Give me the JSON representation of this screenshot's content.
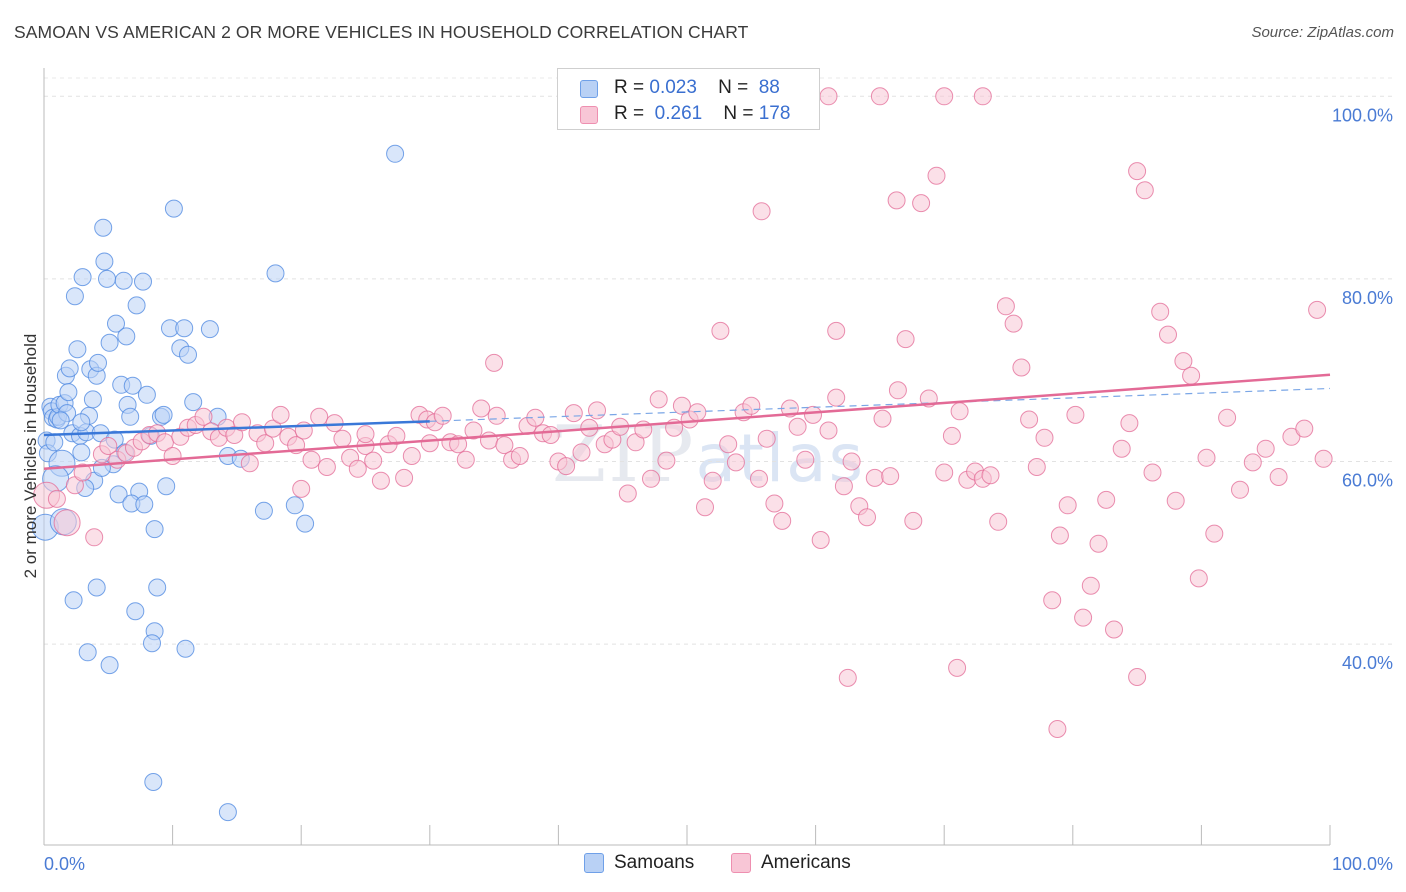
{
  "title": "SAMOAN VS AMERICAN 2 OR MORE VEHICLES IN HOUSEHOLD CORRELATION CHART",
  "source": "Source: ZipAtlas.com",
  "watermark": {
    "zip": "ZIP",
    "atlas": "atlas"
  },
  "legend": {
    "r_label": "R =",
    "n_label": "N =",
    "rows": [
      {
        "r": "0.023",
        "n": "88",
        "color": "#6fa0e8",
        "fill": "#b9d1f5"
      },
      {
        "r": "0.261",
        "n": "178",
        "color": "#ee8fb0",
        "fill": "#f8c6d6"
      }
    ]
  },
  "bottom_legend": [
    {
      "label": "Samoans",
      "fill": "#b9d1f5",
      "border": "#6fa0e8"
    },
    {
      "label": "Americans",
      "fill": "#f8c6d6",
      "border": "#ee8fb0"
    }
  ],
  "chart_data": {
    "type": "scatter",
    "title": "SAMOAN VS AMERICAN 2 OR MORE VEHICLES IN HOUSEHOLD CORRELATION CHART",
    "xlabel": "",
    "ylabel": "2 or more Vehicles in Household",
    "xlim": [
      0,
      100
    ],
    "ylim": [
      18,
      102
    ],
    "x_tick_labels": [
      "0.0%",
      "100.0%"
    ],
    "y_tick_labels": [
      "40.0%",
      "60.0%",
      "80.0%",
      "100.0%"
    ],
    "y_ticks": [
      40,
      60,
      80,
      100
    ],
    "grid": true,
    "legend_position": "top-center",
    "series": [
      {
        "name": "Samoans",
        "color": "#4a86e0",
        "fill": "#b9d1f5",
        "r": 0.023,
        "n": 88,
        "trend": {
          "x": [
            0,
            30.0
          ],
          "y": [
            62.9,
            64.4
          ],
          "dashed_to": [
            100,
            68.0
          ]
        },
        "points": [
          [
            0.2,
            62.3
          ],
          [
            0.3,
            60.9
          ],
          [
            0.5,
            66.0
          ],
          [
            0.6,
            65.5
          ],
          [
            0.7,
            64.8
          ],
          [
            0.8,
            62.1
          ],
          [
            1.0,
            64.6
          ],
          [
            1.1,
            64.9
          ],
          [
            1.2,
            66.2
          ],
          [
            1.4,
            59.8
          ],
          [
            1.6,
            66.4
          ],
          [
            1.7,
            69.4
          ],
          [
            1.8,
            65.3
          ],
          [
            1.9,
            67.6
          ],
          [
            2.0,
            70.2
          ],
          [
            2.2,
            63.1
          ],
          [
            2.4,
            78.1
          ],
          [
            2.6,
            72.3
          ],
          [
            2.8,
            62.8
          ],
          [
            2.9,
            61.0
          ],
          [
            3.0,
            80.2
          ],
          [
            3.3,
            63.2
          ],
          [
            3.5,
            65.0
          ],
          [
            3.6,
            70.1
          ],
          [
            3.8,
            66.8
          ],
          [
            3.9,
            57.9
          ],
          [
            4.1,
            69.4
          ],
          [
            4.2,
            70.8
          ],
          [
            4.4,
            63.1
          ],
          [
            4.6,
            85.6
          ],
          [
            4.7,
            81.9
          ],
          [
            4.9,
            80.0
          ],
          [
            5.1,
            73.0
          ],
          [
            5.4,
            59.7
          ],
          [
            5.6,
            75.1
          ],
          [
            5.8,
            56.4
          ],
          [
            6.0,
            68.4
          ],
          [
            6.2,
            79.8
          ],
          [
            6.4,
            73.7
          ],
          [
            6.5,
            66.2
          ],
          [
            6.7,
            64.9
          ],
          [
            6.9,
            68.3
          ],
          [
            7.2,
            77.1
          ],
          [
            7.4,
            56.7
          ],
          [
            7.7,
            79.7
          ],
          [
            8.0,
            67.3
          ],
          [
            8.3,
            62.8
          ],
          [
            8.6,
            52.6
          ],
          [
            9.1,
            64.9
          ],
          [
            9.5,
            57.3
          ],
          [
            9.8,
            74.6
          ],
          [
            10.1,
            87.7
          ],
          [
            10.6,
            72.4
          ],
          [
            10.9,
            74.6
          ],
          [
            11.2,
            71.7
          ],
          [
            11.6,
            66.5
          ],
          [
            12.9,
            74.5
          ],
          [
            14.3,
            60.6
          ],
          [
            15.3,
            60.3
          ],
          [
            18.0,
            80.6
          ],
          [
            19.5,
            55.2
          ],
          [
            20.3,
            53.2
          ],
          [
            27.3,
            93.7
          ],
          [
            17.1,
            54.6
          ],
          [
            13.5,
            64.9
          ],
          [
            9.3,
            65.1
          ],
          [
            6.8,
            55.4
          ],
          [
            7.8,
            55.3
          ],
          [
            4.1,
            46.2
          ],
          [
            2.3,
            44.8
          ],
          [
            3.4,
            39.1
          ],
          [
            5.1,
            37.7
          ],
          [
            7.1,
            43.6
          ],
          [
            8.6,
            41.4
          ],
          [
            8.4,
            40.1
          ],
          [
            11.0,
            39.5
          ],
          [
            8.8,
            46.2
          ],
          [
            8.5,
            24.9
          ],
          [
            14.3,
            21.6
          ],
          [
            2.9,
            64.3
          ],
          [
            5.5,
            62.4
          ],
          [
            1.3,
            64.5
          ],
          [
            0.9,
            58.1
          ],
          [
            4.5,
            59.3
          ],
          [
            6.3,
            61.0
          ],
          [
            0.1,
            52.8
          ],
          [
            3.2,
            57.1
          ],
          [
            1.5,
            53.4
          ]
        ]
      },
      {
        "name": "Americans",
        "color": "#e36a96",
        "fill": "#f8c6d6",
        "r": 0.261,
        "n": 178,
        "trend": {
          "x": [
            0,
            100
          ],
          "y": [
            59.2,
            69.5
          ]
        },
        "points": [
          [
            0.2,
            56.3
          ],
          [
            1.0,
            55.9
          ],
          [
            1.8,
            53.3
          ],
          [
            2.4,
            57.4
          ],
          [
            3.0,
            58.8
          ],
          [
            3.9,
            51.7
          ],
          [
            4.5,
            60.8
          ],
          [
            5.0,
            61.7
          ],
          [
            5.7,
            60.2
          ],
          [
            6.4,
            60.9
          ],
          [
            7.0,
            61.5
          ],
          [
            7.6,
            62.2
          ],
          [
            8.2,
            62.9
          ],
          [
            8.8,
            63.1
          ],
          [
            9.4,
            62.1
          ],
          [
            10.0,
            60.6
          ],
          [
            10.6,
            62.7
          ],
          [
            11.2,
            63.7
          ],
          [
            11.8,
            64.0
          ],
          [
            12.4,
            64.9
          ],
          [
            13.0,
            63.3
          ],
          [
            13.6,
            62.6
          ],
          [
            14.2,
            63.7
          ],
          [
            14.8,
            62.9
          ],
          [
            15.4,
            64.3
          ],
          [
            16.0,
            59.8
          ],
          [
            16.6,
            63.1
          ],
          [
            17.2,
            62.0
          ],
          [
            17.8,
            63.6
          ],
          [
            18.4,
            65.1
          ],
          [
            19.0,
            62.7
          ],
          [
            19.6,
            61.8
          ],
          [
            20.2,
            63.4
          ],
          [
            20.8,
            60.2
          ],
          [
            21.4,
            64.9
          ],
          [
            22.0,
            59.4
          ],
          [
            22.6,
            64.2
          ],
          [
            23.2,
            62.5
          ],
          [
            23.8,
            60.4
          ],
          [
            24.4,
            59.2
          ],
          [
            25.0,
            61.7
          ],
          [
            25.6,
            60.1
          ],
          [
            26.2,
            57.9
          ],
          [
            26.8,
            61.9
          ],
          [
            27.4,
            62.8
          ],
          [
            28.0,
            58.2
          ],
          [
            28.6,
            60.6
          ],
          [
            29.2,
            65.1
          ],
          [
            29.8,
            64.6
          ],
          [
            30.4,
            64.3
          ],
          [
            31.0,
            65.0
          ],
          [
            31.6,
            62.1
          ],
          [
            32.2,
            61.9
          ],
          [
            32.8,
            60.2
          ],
          [
            33.4,
            63.4
          ],
          [
            34.0,
            65.8
          ],
          [
            34.6,
            62.3
          ],
          [
            35.2,
            65.0
          ],
          [
            35.8,
            61.8
          ],
          [
            36.4,
            60.2
          ],
          [
            37.0,
            60.6
          ],
          [
            37.6,
            63.9
          ],
          [
            38.2,
            64.8
          ],
          [
            38.8,
            63.1
          ],
          [
            39.4,
            62.9
          ],
          [
            40.0,
            60.0
          ],
          [
            40.6,
            59.5
          ],
          [
            41.2,
            65.3
          ],
          [
            41.8,
            61.0
          ],
          [
            42.4,
            63.7
          ],
          [
            43.0,
            65.6
          ],
          [
            43.6,
            61.9
          ],
          [
            44.2,
            62.4
          ],
          [
            44.8,
            63.8
          ],
          [
            45.4,
            56.5
          ],
          [
            46.0,
            62.1
          ],
          [
            46.6,
            63.5
          ],
          [
            47.2,
            58.1
          ],
          [
            47.8,
            66.8
          ],
          [
            48.4,
            60.1
          ],
          [
            49.0,
            63.7
          ],
          [
            49.6,
            66.1
          ],
          [
            50.2,
            64.6
          ],
          [
            50.8,
            65.4
          ],
          [
            51.4,
            55.0
          ],
          [
            52.0,
            57.9
          ],
          [
            52.6,
            74.3
          ],
          [
            53.2,
            61.9
          ],
          [
            53.8,
            59.9
          ],
          [
            54.4,
            65.4
          ],
          [
            55.0,
            66.1
          ],
          [
            55.6,
            58.1
          ],
          [
            56.2,
            62.5
          ],
          [
            56.8,
            55.4
          ],
          [
            57.4,
            53.5
          ],
          [
            58.0,
            65.8
          ],
          [
            58.6,
            63.8
          ],
          [
            59.2,
            60.2
          ],
          [
            59.8,
            65.1
          ],
          [
            60.4,
            51.4
          ],
          [
            61.0,
            63.4
          ],
          [
            61.6,
            67.0
          ],
          [
            62.2,
            57.3
          ],
          [
            62.8,
            60.0
          ],
          [
            63.4,
            55.1
          ],
          [
            64.0,
            53.9
          ],
          [
            64.6,
            58.2
          ],
          [
            65.2,
            64.7
          ],
          [
            65.8,
            58.4
          ],
          [
            66.4,
            67.8
          ],
          [
            67.0,
            73.4
          ],
          [
            67.6,
            53.5
          ],
          [
            68.2,
            88.3
          ],
          [
            68.8,
            66.9
          ],
          [
            69.4,
            91.3
          ],
          [
            70.0,
            58.8
          ],
          [
            70.6,
            62.8
          ],
          [
            71.2,
            65.5
          ],
          [
            71.8,
            58.0
          ],
          [
            72.4,
            58.9
          ],
          [
            73.0,
            58.1
          ],
          [
            73.6,
            58.5
          ],
          [
            74.2,
            53.4
          ],
          [
            74.8,
            77.0
          ],
          [
            75.4,
            75.1
          ],
          [
            76.0,
            70.3
          ],
          [
            76.6,
            64.6
          ],
          [
            77.2,
            59.4
          ],
          [
            77.8,
            62.6
          ],
          [
            78.4,
            44.8
          ],
          [
            79.0,
            51.9
          ],
          [
            79.6,
            55.2
          ],
          [
            80.2,
            65.1
          ],
          [
            80.8,
            42.9
          ],
          [
            81.4,
            46.4
          ],
          [
            82.0,
            51.0
          ],
          [
            82.6,
            55.8
          ],
          [
            83.2,
            41.6
          ],
          [
            83.8,
            61.4
          ],
          [
            84.4,
            64.2
          ],
          [
            85.0,
            91.8
          ],
          [
            85.6,
            89.7
          ],
          [
            86.2,
            58.8
          ],
          [
            86.8,
            76.4
          ],
          [
            87.4,
            73.9
          ],
          [
            88.0,
            55.7
          ],
          [
            88.6,
            71.0
          ],
          [
            89.2,
            69.4
          ],
          [
            89.8,
            47.2
          ],
          [
            90.4,
            60.4
          ],
          [
            91.0,
            52.1
          ],
          [
            92.0,
            64.8
          ],
          [
            93.0,
            56.9
          ],
          [
            94.0,
            59.9
          ],
          [
            95.0,
            61.4
          ],
          [
            96.0,
            58.3
          ],
          [
            97.0,
            62.7
          ],
          [
            98.0,
            63.6
          ],
          [
            99.0,
            76.6
          ],
          [
            99.5,
            60.3
          ],
          [
            54.0,
            100.0
          ],
          [
            58.0,
            100.0
          ],
          [
            61.0,
            100.0
          ],
          [
            65.0,
            100.0
          ],
          [
            70.0,
            100.0
          ],
          [
            73.0,
            100.0
          ],
          [
            85.0,
            36.4
          ],
          [
            78.8,
            30.7
          ],
          [
            62.5,
            36.3
          ],
          [
            71.0,
            37.4
          ],
          [
            55.8,
            87.4
          ],
          [
            66.3,
            88.6
          ],
          [
            61.6,
            74.3
          ],
          [
            35.0,
            70.8
          ],
          [
            30.0,
            62.0
          ],
          [
            25.0,
            63.0
          ],
          [
            20.0,
            57.0
          ]
        ]
      }
    ]
  }
}
